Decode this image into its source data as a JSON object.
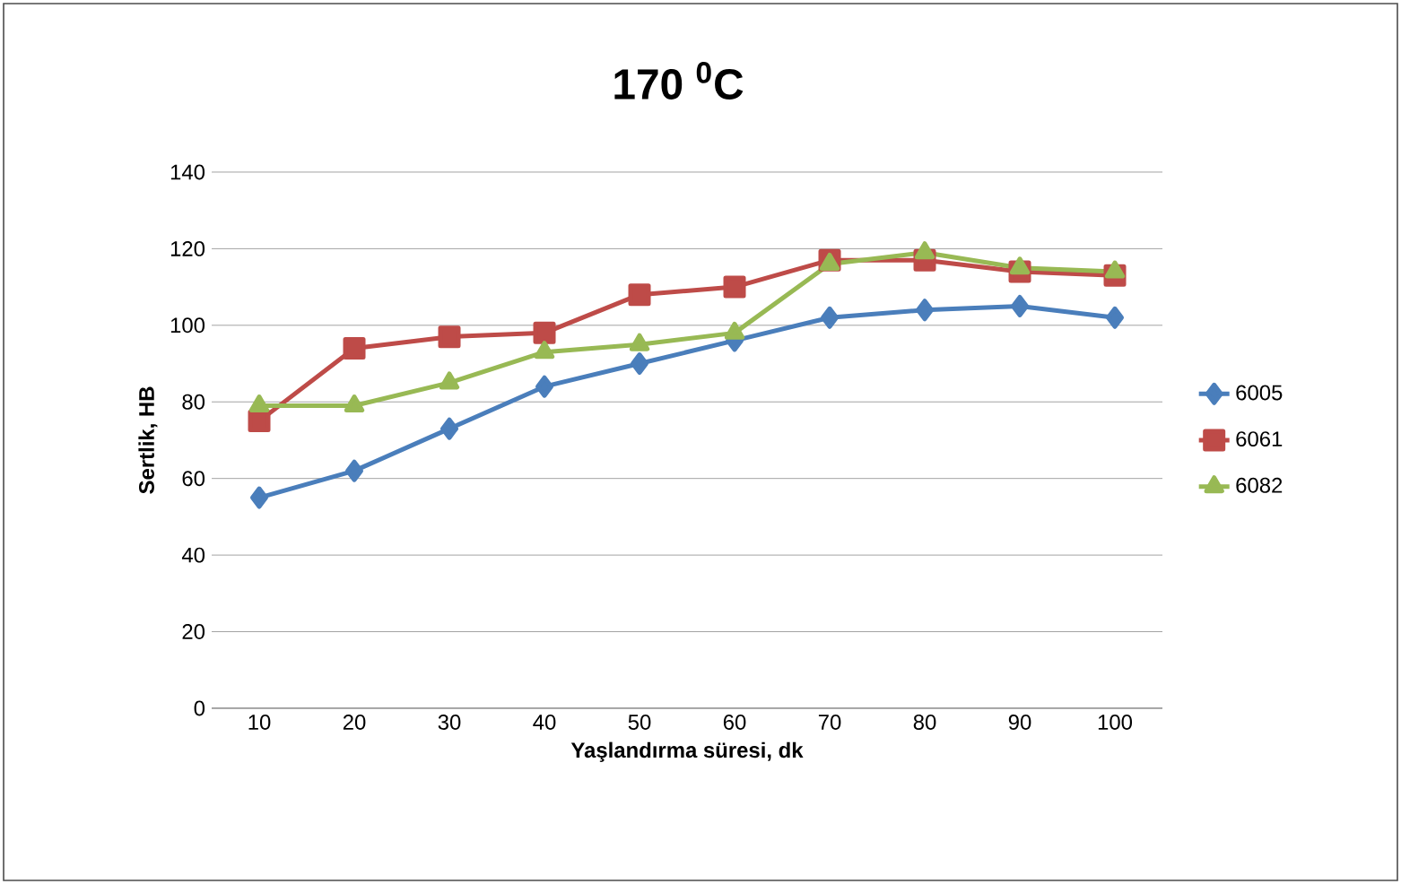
{
  "chart_data": {
    "type": "line",
    "title": "170 $^{0}$C",
    "xlabel": "Yaşlandırma süresi, dk",
    "ylabel": "Sertlik, HB",
    "categories": [
      "10",
      "20",
      "30",
      "40",
      "50",
      "60",
      "70",
      "80",
      "90",
      "100"
    ],
    "series": [
      {
        "name": "6005",
        "color": "#4a7ebb",
        "marker": "diamond",
        "values": [
          55,
          62,
          73,
          84,
          90,
          96,
          102,
          104,
          105,
          102
        ]
      },
      {
        "name": "6061",
        "color": "#be4b48",
        "marker": "square",
        "values": [
          75,
          94,
          97,
          98,
          108,
          110,
          117,
          117,
          114,
          113
        ]
      },
      {
        "name": "6082",
        "color": "#98b954",
        "marker": "triangle",
        "values": [
          79,
          79,
          85,
          93,
          95,
          98,
          116,
          119,
          115,
          114
        ]
      }
    ],
    "ylim": [
      0,
      140
    ],
    "yticks": [
      0,
      20,
      40,
      60,
      80,
      100,
      120,
      140
    ],
    "grid": "y",
    "legend": "right",
    "line_style": "solid"
  }
}
